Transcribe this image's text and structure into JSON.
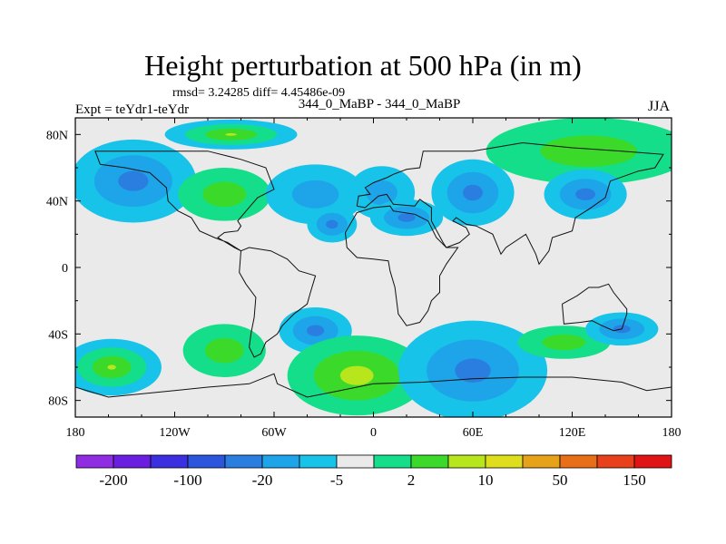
{
  "chart_data": {
    "type": "heatmap",
    "title": "Height perturbation at 500 hPa (in m)",
    "stats": "rmsd= 3.24285 diff= 4.45486e-09",
    "subtitle": "344_0_MaBP - 344_0_MaBP",
    "left_label": "Expt = teYdr1-teYdr",
    "right_label": "JJA",
    "x_range": [
      -180,
      180
    ],
    "y_range": [
      -90,
      90
    ],
    "x_ticks": [
      -180,
      -120,
      -60,
      0,
      60,
      120,
      180
    ],
    "x_tick_labels": [
      "180",
      "120W",
      "60W",
      "0",
      "60E",
      "120E",
      "180"
    ],
    "y_ticks": [
      80,
      40,
      0,
      -40,
      -80
    ],
    "y_tick_labels": [
      "80N",
      "40N",
      "0",
      "40S",
      "80S"
    ],
    "colorbar": {
      "colors": [
        "#8f2de3",
        "#6a1fe0",
        "#3b2fe0",
        "#2b55dd",
        "#2a7ee0",
        "#1ea4e8",
        "#17c3e8",
        "#eaeaea",
        "#15de8a",
        "#3bd92a",
        "#b7e61c",
        "#dede1c",
        "#e6a219",
        "#e86e18",
        "#e8401a",
        "#e01414"
      ],
      "labels": [
        "-200",
        "-100",
        "-20",
        "-5",
        "2",
        "10",
        "50",
        "150"
      ]
    },
    "contour_levels": [
      -5,
      2,
      10,
      50
    ],
    "features": [
      {
        "lon": -145,
        "lat": 52,
        "level": 4,
        "rx": 38,
        "ry": 25,
        "name": "blob-np-west"
      },
      {
        "lon": -86,
        "lat": 80,
        "level": 5,
        "rx": 40,
        "ry": 9,
        "name": "blob-arctic-na"
      },
      {
        "lon": -90,
        "lat": 44,
        "level": 3,
        "rx": 28,
        "ry": 16,
        "name": "blob-na"
      },
      {
        "lon": -35,
        "lat": 44,
        "level": 2,
        "rx": 30,
        "ry": 18,
        "name": "blob-atl"
      },
      {
        "lon": -25,
        "lat": 26,
        "level": 4,
        "rx": 15,
        "ry": 11,
        "name": "blob-atl-south"
      },
      {
        "lon": 5,
        "lat": 45,
        "level": 2,
        "rx": 20,
        "ry": 16,
        "name": "blob-europe"
      },
      {
        "lon": 20,
        "lat": 30,
        "level": 4,
        "rx": 22,
        "ry": 11,
        "name": "blob-med"
      },
      {
        "lon": 60,
        "lat": 45,
        "level": 4,
        "rx": 25,
        "ry": 20,
        "name": "blob-asia"
      },
      {
        "lon": 130,
        "lat": 70,
        "level": 3,
        "rx": 62,
        "ry": 20,
        "name": "blob-arctic-asia"
      },
      {
        "lon": 128,
        "lat": 44,
        "level": 4,
        "rx": 25,
        "ry": 15,
        "name": "blob-np-east"
      },
      {
        "lon": -158,
        "lat": -60,
        "level": 5,
        "rx": 30,
        "ry": 17,
        "name": "blob-sp-west"
      },
      {
        "lon": -90,
        "lat": -50,
        "level": 3,
        "rx": 25,
        "ry": 16,
        "name": "blob-sp-mid"
      },
      {
        "lon": -35,
        "lat": -38,
        "level": 4,
        "rx": 22,
        "ry": 14,
        "name": "blob-sa-east"
      },
      {
        "lon": -10,
        "lat": -65,
        "level": 1,
        "rx": 42,
        "ry": 24,
        "name": "blob-south-atl"
      },
      {
        "lon": 60,
        "lat": -62,
        "level": 6,
        "rx": 45,
        "ry": 30,
        "name": "blob-south-indian"
      },
      {
        "lon": 115,
        "lat": -45,
        "level": 3,
        "rx": 28,
        "ry": 10,
        "name": "blob-aus-south"
      },
      {
        "lon": 150,
        "lat": -37,
        "level": 4,
        "rx": 22,
        "ry": 10,
        "name": "blob-aus-east"
      }
    ]
  }
}
